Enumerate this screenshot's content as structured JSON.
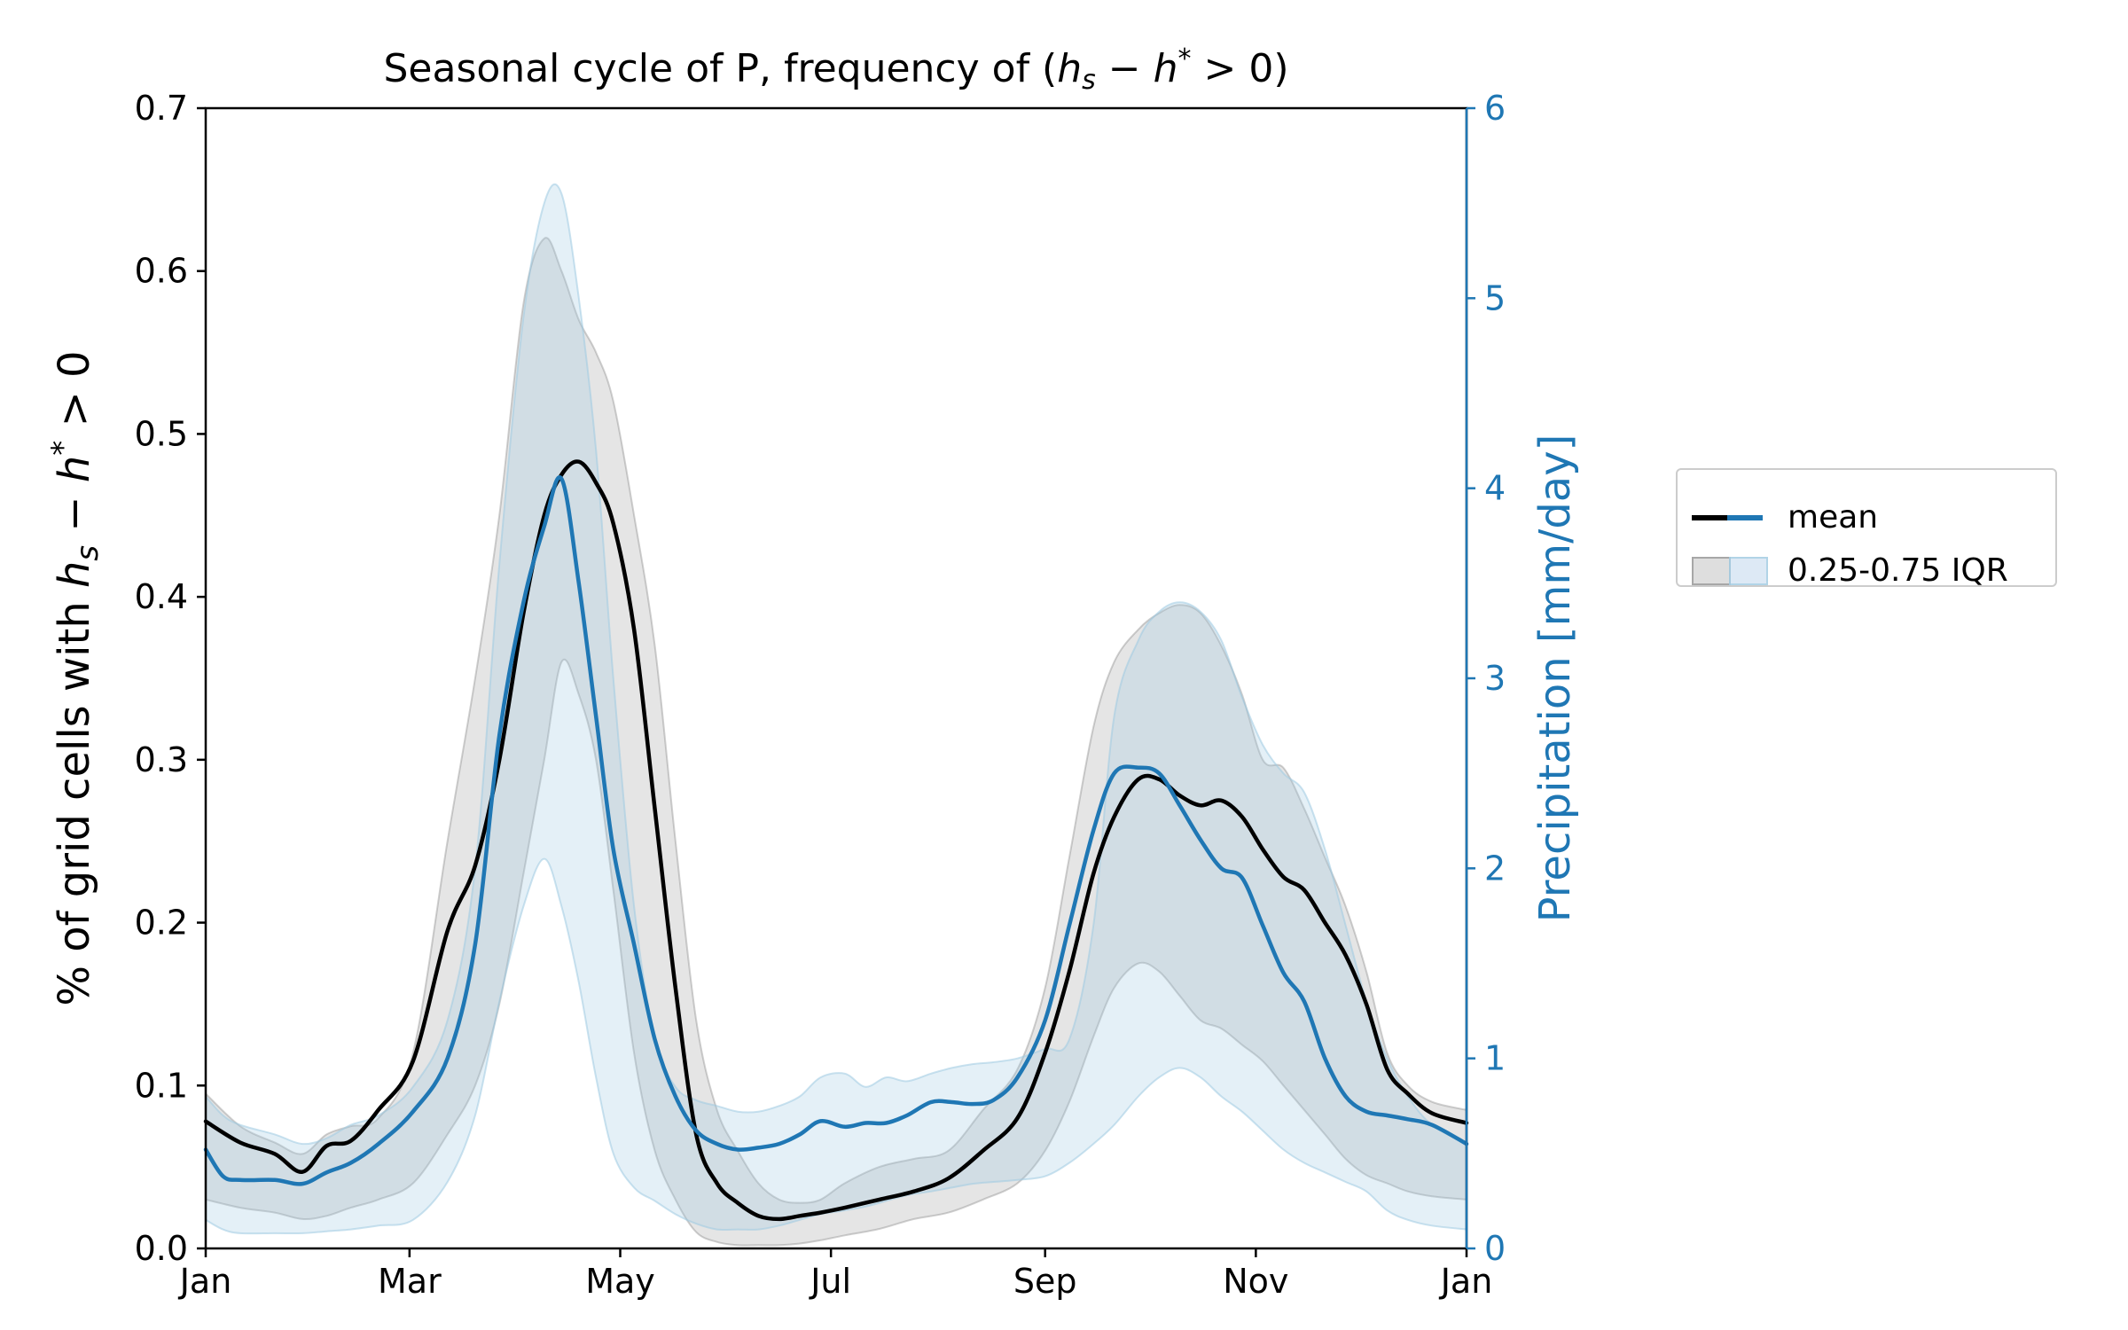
{
  "chart_data": {
    "type": "area",
    "title": "Seasonal cycle of P, frequency of (h_s − h* > 0)",
    "ylabel_left": "% of grid cells with h_s − h* > 0",
    "ylabel_right": "Precipitation [mm/day]",
    "xticks": [
      "Jan",
      "Mar",
      "May",
      "Jul",
      "Sep",
      "Nov",
      "Jan"
    ],
    "xtick_days": [
      0,
      59,
      120,
      181,
      243,
      304,
      365
    ],
    "xlim": [
      0,
      365
    ],
    "ylim_left": [
      0,
      0.7
    ],
    "ylim_right": [
      0,
      6
    ],
    "yticks_left": [
      "0.0",
      "0.1",
      "0.2",
      "0.3",
      "0.4",
      "0.5",
      "0.6",
      "0.7"
    ],
    "yticks_right": [
      "0",
      "1",
      "2",
      "3",
      "4",
      "5",
      "6"
    ],
    "grid": false,
    "legend_placement": "outside-right",
    "colors": {
      "frequency": "#000000",
      "precip": "#1f77b4",
      "frequency_band": "#bdbdbd",
      "precip_band": "#c6dbef"
    },
    "series": [
      {
        "name": "mean",
        "axis": "left",
        "x": [
          0,
          10,
          20,
          28,
          35,
          42,
          50,
          60,
          70,
          78,
          85,
          92,
          98,
          103,
          108,
          113,
          118,
          124,
          130,
          136,
          142,
          148,
          154,
          160,
          166,
          172,
          178,
          185,
          195,
          205,
          215,
          225,
          235,
          243,
          250,
          257,
          263,
          270,
          276,
          282,
          288,
          294,
          300,
          306,
          312,
          318,
          324,
          330,
          336,
          342,
          348,
          355,
          365
        ],
        "y": [
          0.078,
          0.065,
          0.058,
          0.047,
          0.063,
          0.066,
          0.085,
          0.115,
          0.195,
          0.235,
          0.3,
          0.39,
          0.45,
          0.475,
          0.483,
          0.47,
          0.445,
          0.38,
          0.27,
          0.16,
          0.07,
          0.04,
          0.028,
          0.02,
          0.018,
          0.02,
          0.022,
          0.025,
          0.03,
          0.035,
          0.043,
          0.06,
          0.08,
          0.12,
          0.17,
          0.23,
          0.265,
          0.288,
          0.288,
          0.278,
          0.272,
          0.275,
          0.265,
          0.245,
          0.228,
          0.22,
          0.2,
          0.18,
          0.15,
          0.11,
          0.095,
          0.083,
          0.077
        ]
      },
      {
        "name": "mean",
        "axis": "right",
        "x": [
          0,
          5,
          10,
          20,
          28,
          35,
          42,
          50,
          60,
          70,
          78,
          85,
          92,
          98,
          103,
          108,
          113,
          118,
          124,
          130,
          136,
          142,
          148,
          154,
          160,
          166,
          172,
          178,
          185,
          191,
          197,
          203,
          210,
          216,
          222,
          228,
          235,
          243,
          250,
          257,
          263,
          270,
          276,
          282,
          288,
          294,
          300,
          306,
          312,
          318,
          324,
          330,
          336,
          342,
          348,
          355,
          365
        ],
        "y": [
          0.52,
          0.38,
          0.36,
          0.36,
          0.34,
          0.4,
          0.45,
          0.55,
          0.72,
          1.0,
          1.6,
          2.7,
          3.4,
          3.8,
          4.05,
          3.5,
          2.8,
          2.1,
          1.6,
          1.1,
          0.8,
          0.62,
          0.55,
          0.52,
          0.53,
          0.55,
          0.6,
          0.67,
          0.64,
          0.66,
          0.66,
          0.7,
          0.77,
          0.77,
          0.76,
          0.78,
          0.9,
          1.2,
          1.7,
          2.2,
          2.5,
          2.53,
          2.5,
          2.33,
          2.15,
          2.0,
          1.95,
          1.7,
          1.45,
          1.3,
          1.0,
          0.8,
          0.72,
          0.7,
          0.68,
          0.65,
          0.55
        ]
      }
    ],
    "bands": [
      {
        "name": "0.25-0.75 IQR",
        "axis": "left",
        "x": [
          0,
          10,
          20,
          28,
          35,
          42,
          50,
          60,
          70,
          78,
          85,
          92,
          98,
          103,
          108,
          113,
          118,
          124,
          130,
          136,
          142,
          148,
          154,
          160,
          166,
          172,
          178,
          185,
          195,
          205,
          215,
          225,
          235,
          243,
          250,
          257,
          263,
          270,
          276,
          282,
          288,
          294,
          300,
          306,
          312,
          318,
          324,
          330,
          336,
          342,
          348,
          355,
          365
        ],
        "low": [
          0.03,
          0.025,
          0.022,
          0.018,
          0.02,
          0.025,
          0.03,
          0.04,
          0.07,
          0.1,
          0.15,
          0.23,
          0.3,
          0.36,
          0.34,
          0.3,
          0.22,
          0.12,
          0.06,
          0.03,
          0.01,
          0.004,
          0.002,
          0.002,
          0.002,
          0.003,
          0.005,
          0.008,
          0.012,
          0.018,
          0.022,
          0.03,
          0.04,
          0.06,
          0.09,
          0.13,
          0.16,
          0.175,
          0.17,
          0.155,
          0.14,
          0.135,
          0.125,
          0.115,
          0.1,
          0.085,
          0.07,
          0.055,
          0.045,
          0.04,
          0.035,
          0.032,
          0.03
        ],
        "high": [
          0.095,
          0.075,
          0.065,
          0.058,
          0.07,
          0.075,
          0.08,
          0.12,
          0.25,
          0.35,
          0.45,
          0.58,
          0.62,
          0.6,
          0.57,
          0.55,
          0.52,
          0.45,
          0.37,
          0.25,
          0.14,
          0.085,
          0.06,
          0.04,
          0.03,
          0.028,
          0.03,
          0.04,
          0.05,
          0.055,
          0.06,
          0.085,
          0.11,
          0.16,
          0.24,
          0.32,
          0.36,
          0.38,
          0.39,
          0.395,
          0.39,
          0.37,
          0.34,
          0.3,
          0.295,
          0.27,
          0.24,
          0.21,
          0.17,
          0.12,
          0.1,
          0.09,
          0.085
        ]
      },
      {
        "name": "0.25-0.75 IQR",
        "axis": "right",
        "x": [
          0,
          5,
          10,
          20,
          28,
          35,
          42,
          50,
          60,
          70,
          78,
          85,
          92,
          98,
          103,
          108,
          113,
          118,
          124,
          130,
          136,
          142,
          148,
          154,
          160,
          166,
          172,
          178,
          185,
          191,
          197,
          203,
          210,
          216,
          222,
          228,
          235,
          243,
          250,
          257,
          263,
          270,
          276,
          282,
          288,
          294,
          300,
          306,
          312,
          318,
          324,
          330,
          336,
          342,
          348,
          355,
          365
        ],
        "low": [
          0.15,
          0.1,
          0.08,
          0.08,
          0.08,
          0.09,
          0.1,
          0.12,
          0.15,
          0.35,
          0.7,
          1.3,
          1.8,
          2.05,
          1.8,
          1.4,
          0.9,
          0.5,
          0.32,
          0.25,
          0.18,
          0.13,
          0.1,
          0.1,
          0.1,
          0.12,
          0.15,
          0.18,
          0.2,
          0.22,
          0.25,
          0.28,
          0.3,
          0.32,
          0.34,
          0.35,
          0.36,
          0.38,
          0.45,
          0.55,
          0.65,
          0.8,
          0.9,
          0.95,
          0.9,
          0.8,
          0.72,
          0.62,
          0.52,
          0.45,
          0.4,
          0.35,
          0.3,
          0.2,
          0.15,
          0.12,
          0.1
        ],
        "high": [
          0.8,
          0.7,
          0.65,
          0.6,
          0.55,
          0.58,
          0.65,
          0.7,
          0.85,
          1.2,
          2.0,
          3.6,
          4.9,
          5.5,
          5.55,
          5.0,
          4.2,
          3.0,
          1.8,
          1.1,
          0.85,
          0.78,
          0.75,
          0.72,
          0.72,
          0.75,
          0.8,
          0.9,
          0.92,
          0.85,
          0.9,
          0.88,
          0.92,
          0.95,
          0.97,
          0.98,
          1.0,
          1.05,
          1.1,
          1.7,
          2.8,
          3.2,
          3.35,
          3.4,
          3.35,
          3.2,
          2.9,
          2.65,
          2.5,
          2.4,
          2.1,
          1.7,
          1.3,
          1.0,
          0.8,
          0.65,
          0.55
        ]
      }
    ]
  },
  "legend": {
    "items": [
      {
        "label": "mean"
      },
      {
        "label": "0.25-0.75 IQR"
      }
    ]
  }
}
